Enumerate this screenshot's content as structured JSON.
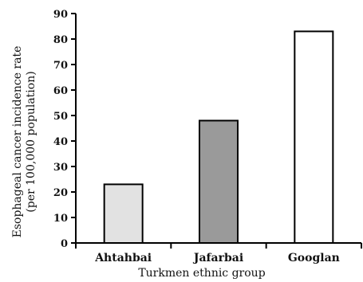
{
  "chart_data": {
    "type": "bar",
    "title": "",
    "categories": [
      "Ahtahbai",
      "Jafarbai",
      "Googlan"
    ],
    "values": [
      23,
      48,
      83
    ],
    "bar_colors": [
      "#e2e2e2",
      "#9a9a9a",
      "#ffffff"
    ],
    "xlabel": "Turkmen ethnic group",
    "ylabel_line1": "Esophageal cancer incidence rate",
    "ylabel_line2": "(per 100,000 population)",
    "ylim": [
      0,
      90
    ],
    "yticks": [
      "0",
      "10",
      "20",
      "30",
      "40",
      "50",
      "60",
      "70",
      "80",
      "90"
    ],
    "grid": false,
    "legend": "none"
  }
}
